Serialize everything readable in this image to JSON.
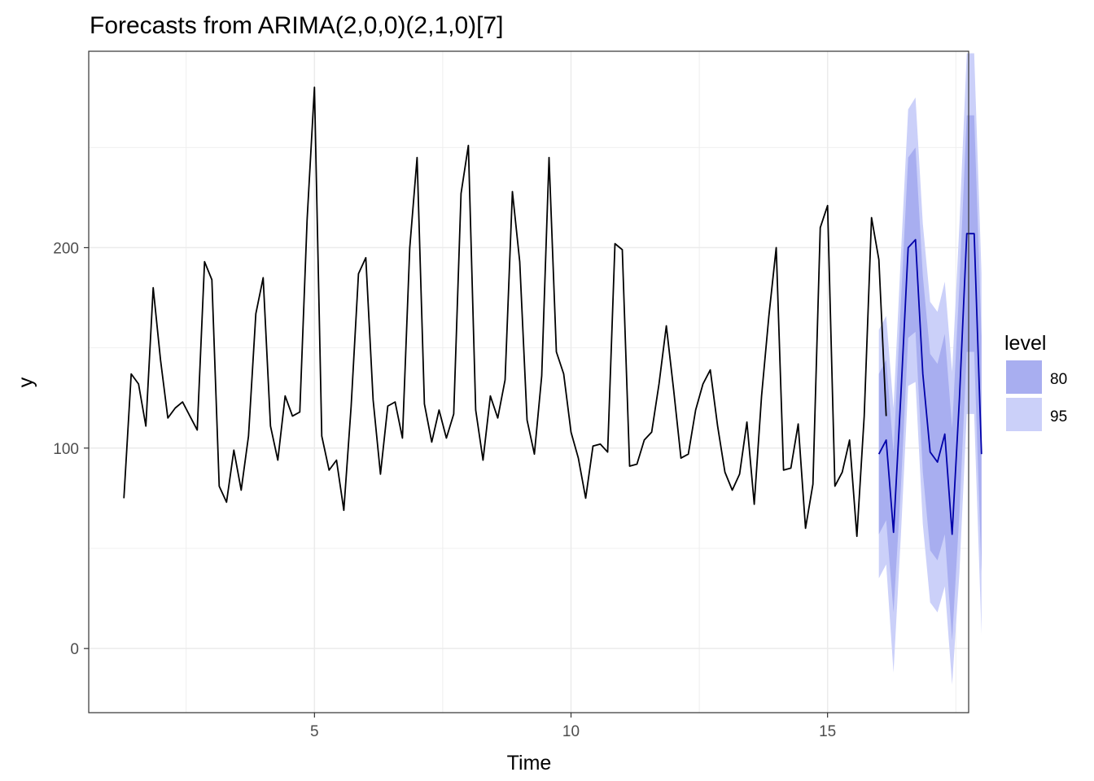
{
  "chart_data": {
    "type": "line",
    "title": "Forecasts from ARIMA(2,0,0)(2,1,0)[7]",
    "xlabel": "Time",
    "ylabel": "y",
    "xlim": [
      0.6,
      17.75
    ],
    "ylim": [
      -32,
      298
    ],
    "x_ticks": [
      5,
      10,
      15
    ],
    "y_ticks": [
      0,
      100,
      200
    ],
    "grid": true,
    "legend": {
      "title": "level",
      "position": "right",
      "entries": [
        "80",
        "95"
      ]
    },
    "colors": {
      "observed": "#000000",
      "forecast": "#0000aa",
      "band80": "#a8aef0",
      "band95": "#cbd0f9",
      "grid": "#ebebeb",
      "panel_border": "#333333"
    },
    "observed": {
      "start": 1.2857,
      "step": 0.142857,
      "values": [
        75,
        137,
        132,
        111,
        180,
        144,
        115,
        120,
        123,
        116,
        109,
        193,
        184,
        81,
        73,
        99,
        79,
        106,
        167,
        185,
        111,
        94,
        126,
        116,
        118,
        214,
        280,
        106,
        89,
        94,
        69,
        121,
        187,
        195,
        124,
        87,
        121,
        123,
        105,
        200,
        245,
        122,
        103,
        119,
        105,
        117,
        227,
        251,
        119,
        94,
        126,
        115,
        134,
        228,
        193,
        114,
        97,
        136,
        245,
        148,
        137,
        108,
        95,
        75,
        101,
        102,
        98,
        202,
        199,
        91,
        92,
        104,
        108,
        132,
        161,
        129,
        95,
        97,
        119,
        132,
        139,
        111,
        88,
        79,
        87,
        113,
        72,
        126,
        166,
        200,
        89,
        90,
        112,
        60,
        82,
        210,
        221,
        81,
        88,
        104,
        56,
        116,
        215,
        194,
        116
      ]
    },
    "forecast": {
      "start": 16.0,
      "step": 0.142857,
      "mean": [
        97,
        104,
        58,
        126,
        200,
        204,
        137,
        98,
        93,
        107,
        57,
        125,
        207,
        207,
        97
      ],
      "lo80": [
        57,
        64,
        18,
        80,
        155,
        158,
        88,
        49,
        44,
        57,
        4,
        68,
        148,
        148,
        38
      ],
      "hi80": [
        137,
        144,
        98,
        172,
        245,
        250,
        186,
        147,
        142,
        157,
        110,
        182,
        266,
        266,
        156
      ],
      "lo95": [
        35,
        42,
        -12,
        56,
        131,
        133,
        62,
        23,
        18,
        31,
        -18,
        38,
        117,
        117,
        7
      ],
      "hi95": [
        159,
        166,
        120,
        196,
        269,
        275,
        212,
        173,
        168,
        183,
        138,
        212,
        297,
        297,
        187
      ]
    }
  }
}
